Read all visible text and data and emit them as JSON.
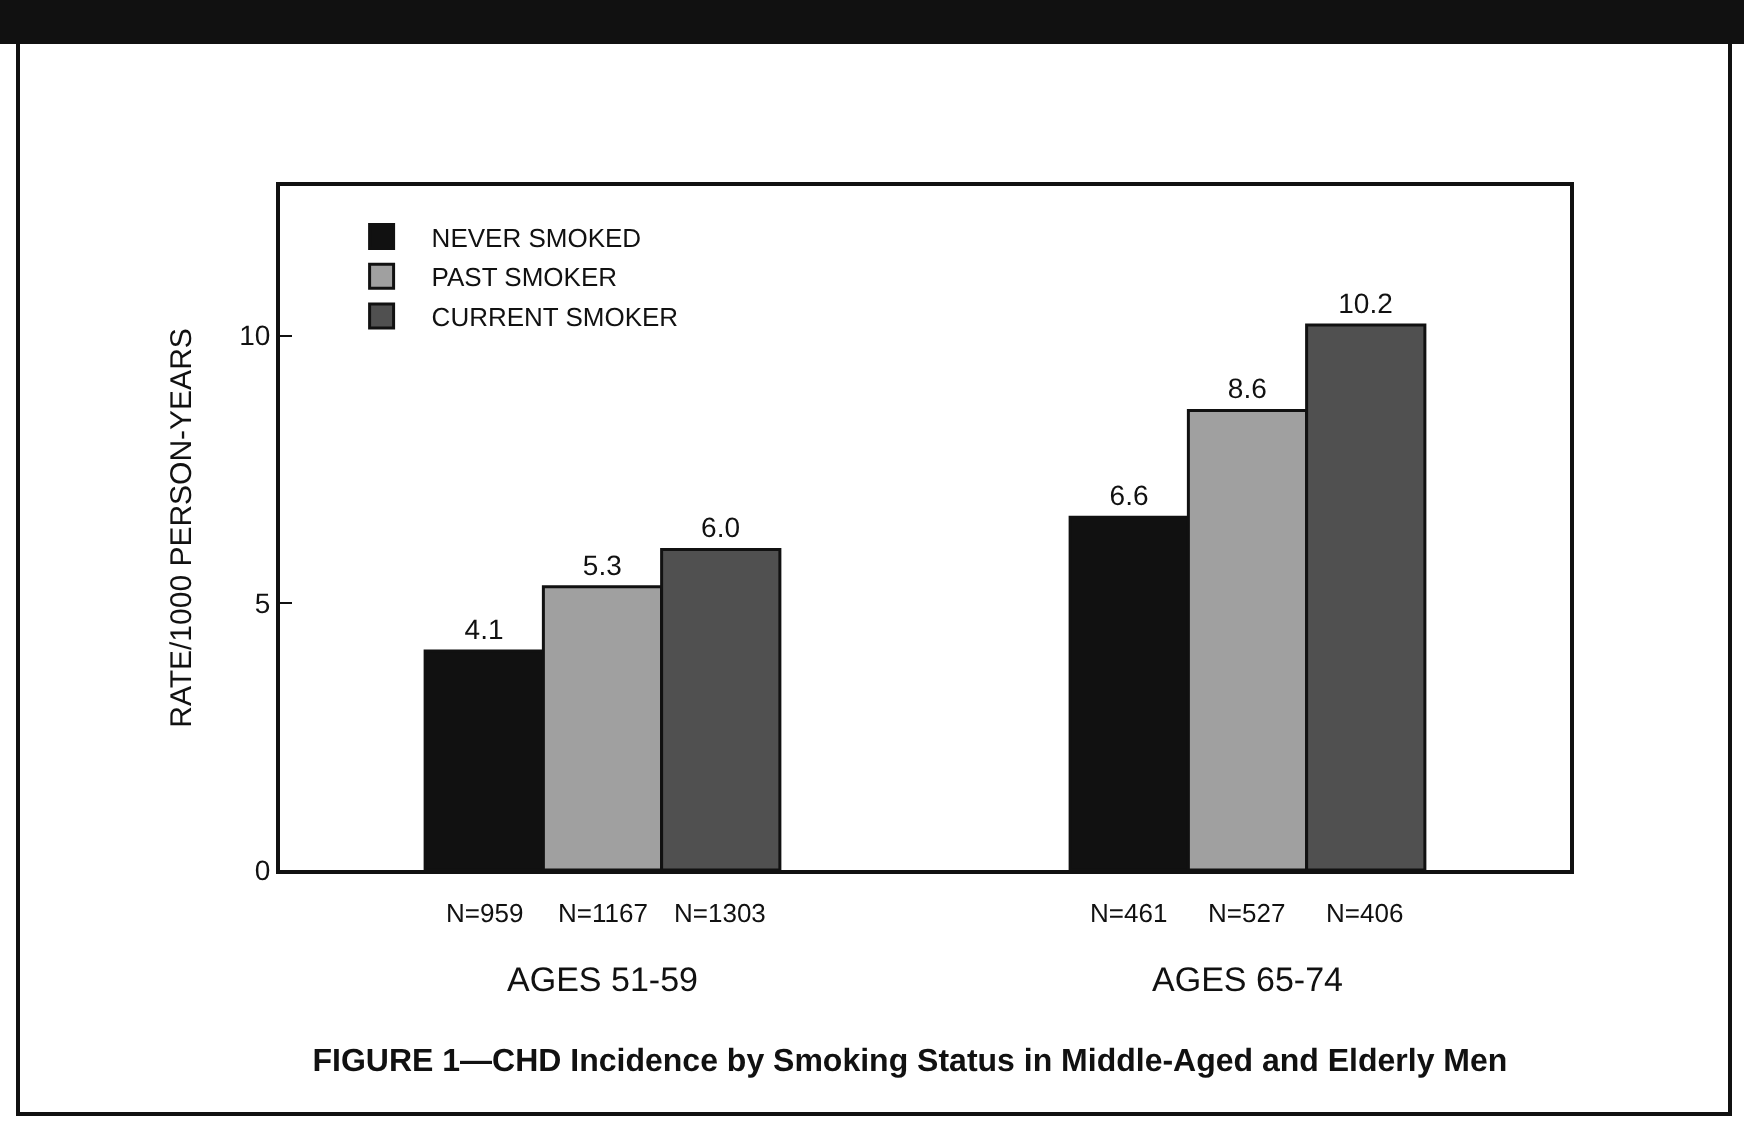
{
  "chart_data": {
    "type": "bar",
    "title": "FIGURE 1—CHD Incidence by Smoking Status in Middle-Aged and Elderly Men",
    "ylabel": "RATE/1000 PERSON-YEARS",
    "categories": [
      "AGES 51-59",
      "AGES 65-74"
    ],
    "series": [
      {
        "name": "NEVER SMOKED",
        "color": "#111111",
        "values": [
          4.1,
          6.6
        ],
        "value_labels": [
          "4.1",
          "6.6"
        ]
      },
      {
        "name": "PAST SMOKER",
        "color": "#a0a0a0",
        "values": [
          5.3,
          8.6
        ],
        "value_labels": [
          "5.3",
          "8.6"
        ]
      },
      {
        "name": "CURRENT SMOKER",
        "color": "#505050",
        "values": [
          6.0,
          10.2
        ],
        "value_labels": [
          "6.0",
          "10.2"
        ]
      }
    ],
    "annotations": [
      "N=959",
      "N=1167",
      "N=1303",
      "N=461",
      "N=527",
      "N=406"
    ],
    "ylim": [
      0,
      12.8
    ],
    "yticks": [
      0,
      5,
      10
    ],
    "grid": false,
    "legend": "top left"
  }
}
